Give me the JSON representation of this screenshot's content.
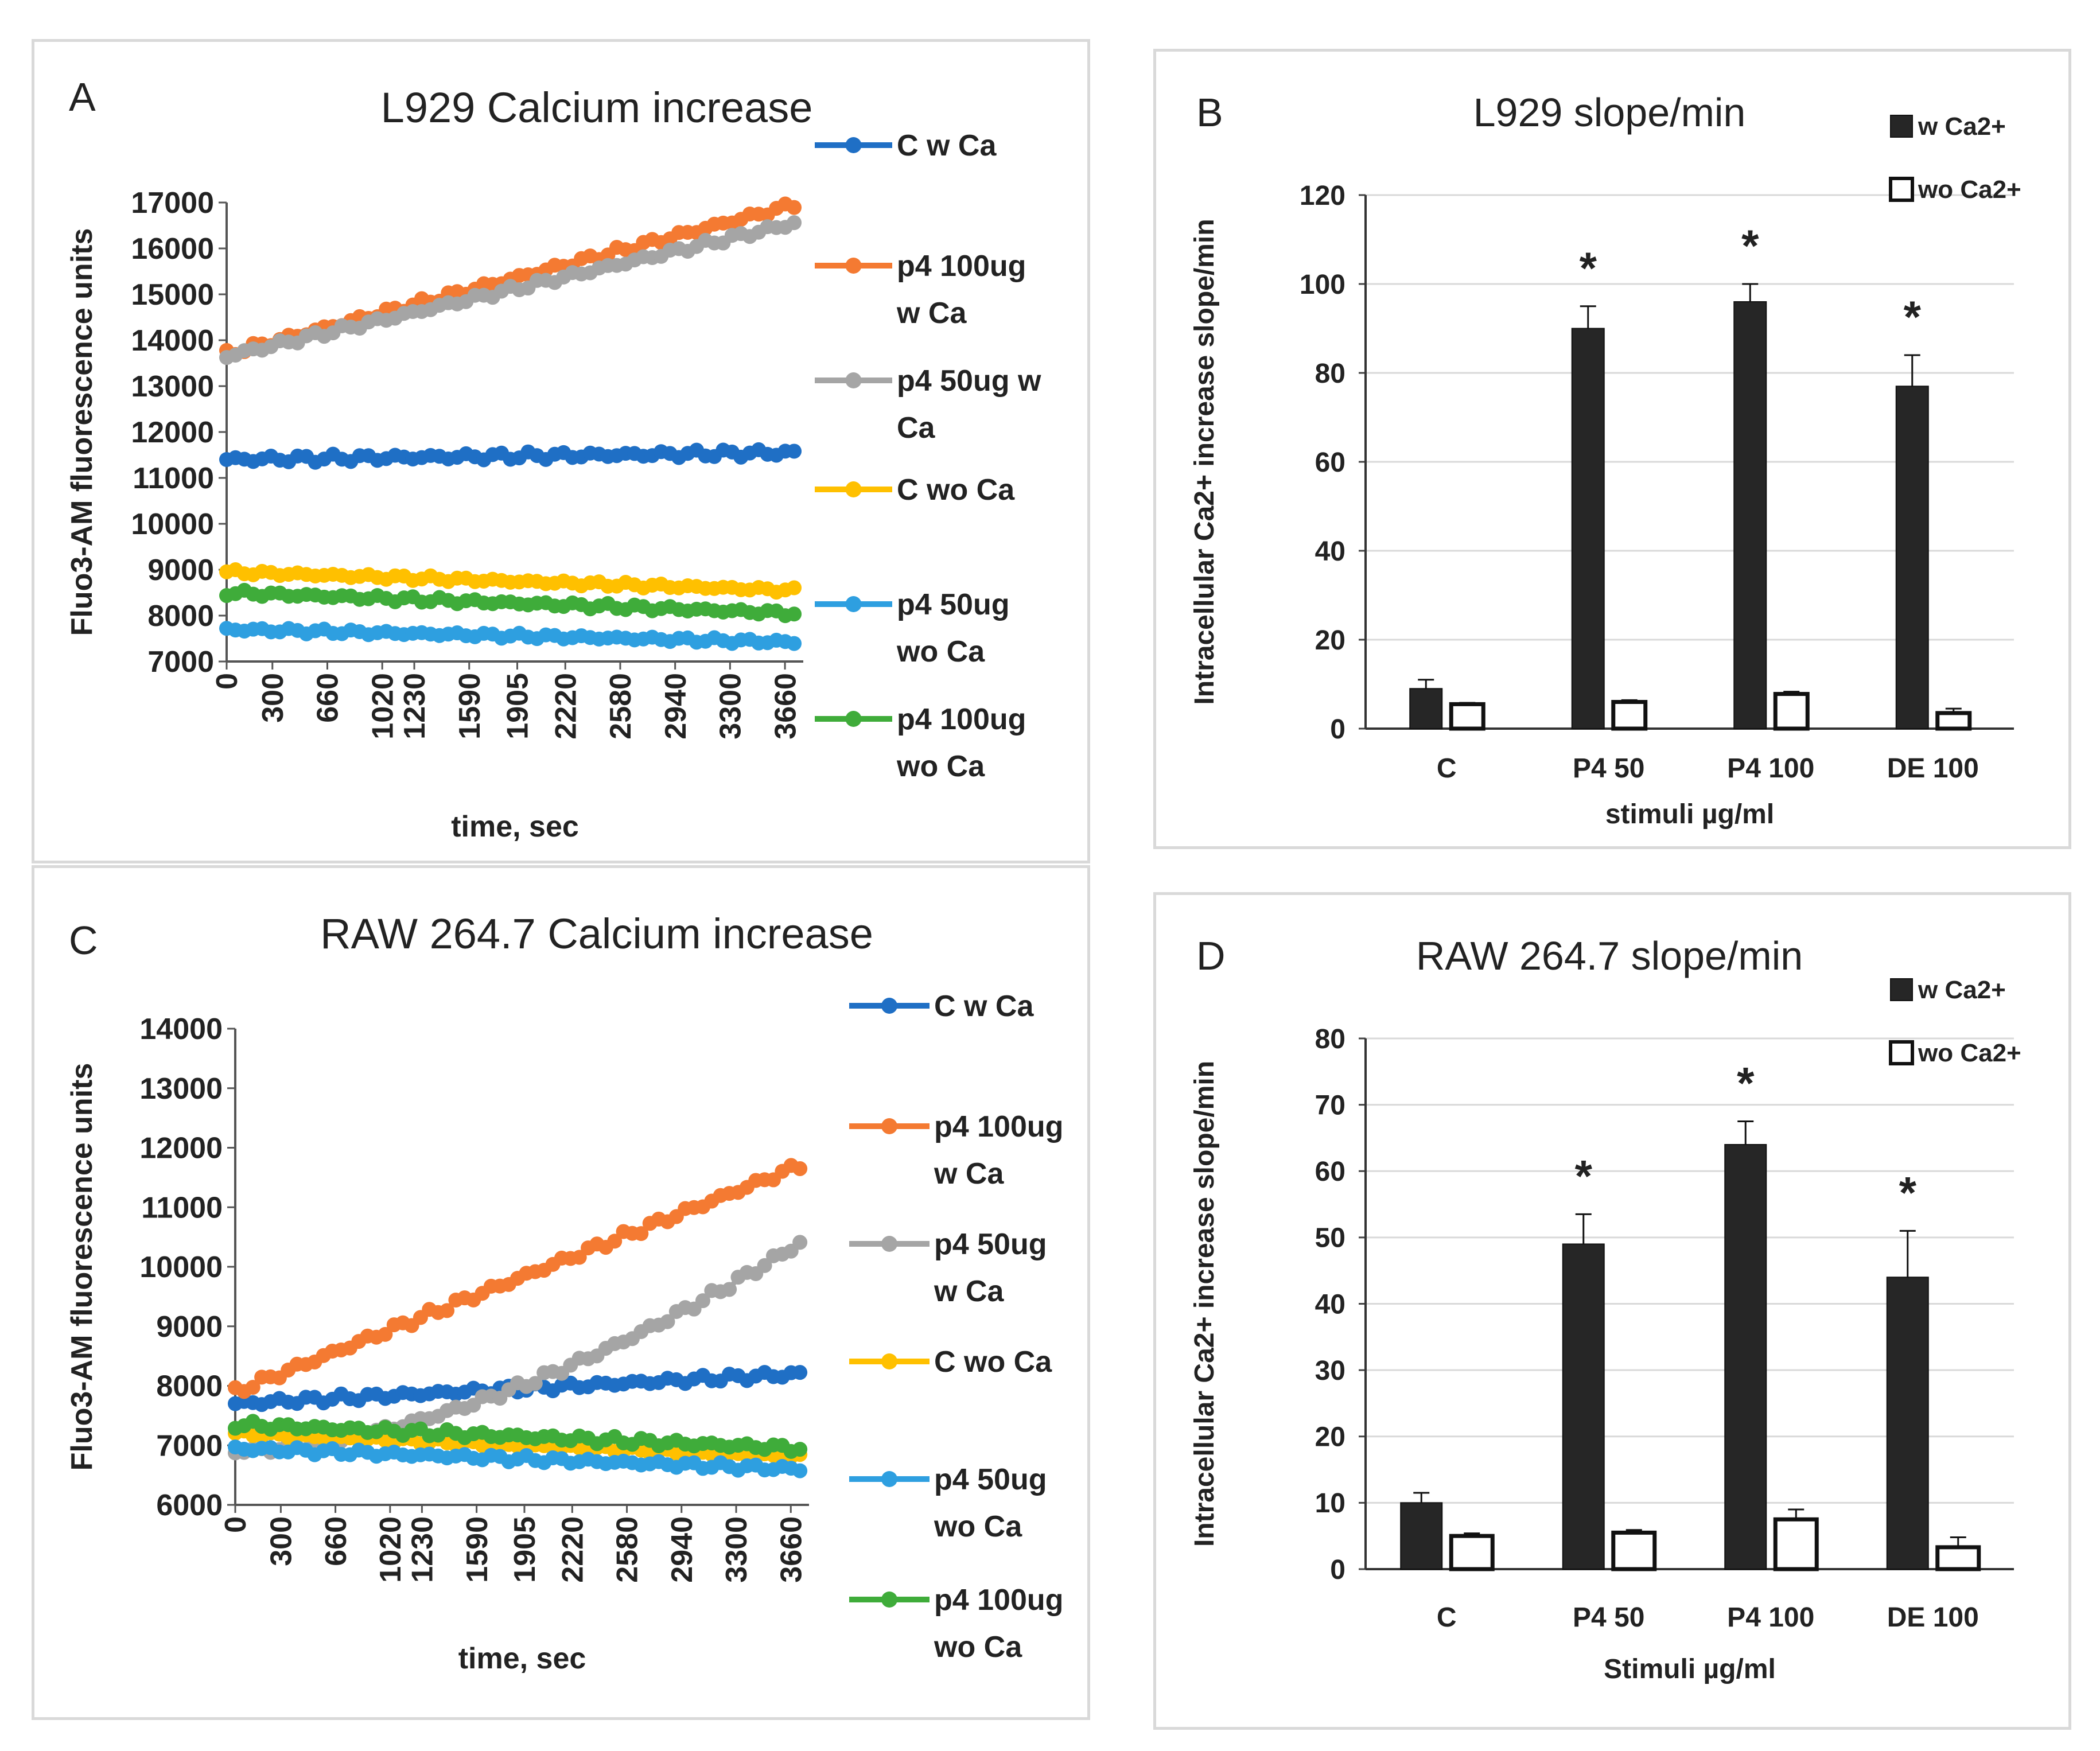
{
  "chart_data": [
    {
      "id": "A",
      "panel_letter": "A",
      "type": "line",
      "title": "L929 Calcium increase",
      "xlabel": "time, sec",
      "ylabel": "Fluo3-AM fluorescence units",
      "xlim": [
        0,
        3780
      ],
      "ylim": [
        7000,
        17000
      ],
      "yticks": [
        7000,
        8000,
        9000,
        10000,
        11000,
        12000,
        13000,
        14000,
        15000,
        16000,
        17000
      ],
      "ytick_labels": [
        "7000",
        "8000",
        "9000",
        "10000",
        "11000",
        "12000",
        "13000",
        "14000",
        "15000",
        "16000",
        "17000"
      ],
      "xticks": [
        0,
        300,
        660,
        1020,
        1230,
        1590,
        1905,
        2220,
        2580,
        2940,
        3300,
        3660
      ],
      "xtick_labels": [
        "0",
        "300",
        "660",
        "1020",
        "1230",
        "1590",
        "1905",
        "2220",
        "2580",
        "2940",
        "3300",
        "3660"
      ],
      "series": [
        {
          "name": "C w Ca",
          "legend_lines": [
            "C w Ca"
          ],
          "color": "#1f6fc5",
          "start": 11400,
          "end": 11550,
          "amp": 90
        },
        {
          "name": "p4 100ug w Ca",
          "legend_lines": [
            "p4 100ug",
            "w Ca"
          ],
          "color": "#f47a32",
          "start": 13700,
          "end": 16950,
          "amp": 90
        },
        {
          "name": "p4 50ug w Ca",
          "legend_lines": [
            "p4 50ug w",
            "Ca"
          ],
          "color": "#a5a5a5",
          "start": 13650,
          "end": 16550,
          "amp": 80
        },
        {
          "name": "C wo Ca",
          "legend_lines": [
            "C wo Ca"
          ],
          "color": "#ffc000",
          "start": 8950,
          "end": 8550,
          "amp": 60
        },
        {
          "name": "p4 50ug wo Ca",
          "legend_lines": [
            "p4 50ug",
            "wo Ca"
          ],
          "color": "#2e9fe0",
          "start": 7700,
          "end": 7420,
          "amp": 60
        },
        {
          "name": "p4 100ug wo Ca",
          "legend_lines": [
            "p4 100ug",
            "wo Ca"
          ],
          "color": "#3fac3a",
          "start": 8500,
          "end": 8050,
          "amp": 70
        }
      ]
    },
    {
      "id": "B",
      "panel_letter": "B",
      "type": "bar",
      "title": "L929 slope/min",
      "xlabel": "stimuli µg/ml",
      "ylabel": "Intracellular Ca2+ increase slope/min",
      "ylim": [
        0,
        120
      ],
      "yticks": [
        0,
        20,
        40,
        60,
        80,
        100,
        120
      ],
      "ytick_labels": [
        "0",
        "20",
        "40",
        "60",
        "80",
        "100",
        "120"
      ],
      "categories": [
        "C",
        "P4 50",
        "P4 100",
        "DE 100"
      ],
      "series": [
        {
          "name": "w Ca2+",
          "values": [
            9,
            90,
            96,
            77
          ],
          "errors": [
            2,
            5,
            4,
            7
          ]
        },
        {
          "name": "wo Ca2+",
          "values": [
            5.5,
            6,
            7.8,
            3.5
          ],
          "errors": [
            0.3,
            0.4,
            0.5,
            1.0
          ]
        }
      ],
      "significance": [
        "",
        "*",
        "*",
        "*"
      ]
    },
    {
      "id": "C",
      "panel_letter": "C",
      "type": "line",
      "title": "RAW 264.7 Calcium increase",
      "xlabel": "time, sec",
      "ylabel": "Fluo3-AM fluorescence units",
      "xlim": [
        0,
        3780
      ],
      "ylim": [
        6000,
        14000
      ],
      "yticks": [
        6000,
        7000,
        8000,
        9000,
        10000,
        11000,
        12000,
        13000,
        14000
      ],
      "ytick_labels": [
        "6000",
        "7000",
        "8000",
        "9000",
        "10000",
        "11000",
        "12000",
        "13000",
        "14000"
      ],
      "xticks": [
        0,
        300,
        660,
        1020,
        1230,
        1590,
        1905,
        2220,
        2580,
        2940,
        3300,
        3660
      ],
      "xtick_labels": [
        "0",
        "300",
        "660",
        "1020",
        "1230",
        "1590",
        "1905",
        "2220",
        "2580",
        "2940",
        "3300",
        "3660"
      ],
      "series": [
        {
          "name": "C w Ca",
          "legend_lines": [
            "C w Ca"
          ],
          "color": "#1f6fc5",
          "start": 7700,
          "end": 8200,
          "amp": 70
        },
        {
          "name": "p4 100ug w Ca",
          "legend_lines": [
            "p4 100ug",
            "w Ca"
          ],
          "color": "#f47a32",
          "start": 7900,
          "end": 11700,
          "amp": 80
        },
        {
          "name": "p4 50ug w Ca",
          "legend_lines": [
            "p4 50ug",
            "w Ca"
          ],
          "color": "#a5a5a5",
          "start": 6900,
          "end": 10400,
          "amp": 80,
          "curve": 1.7
        },
        {
          "name": "C wo Ca",
          "legend_lines": [
            "C wo Ca"
          ],
          "color": "#ffc000",
          "start": 7200,
          "end": 6800,
          "amp": 50
        },
        {
          "name": "p4 50ug wo Ca",
          "legend_lines": [
            "p4 50ug",
            "wo Ca"
          ],
          "color": "#2e9fe0",
          "start": 6950,
          "end": 6600,
          "amp": 60
        },
        {
          "name": "p4 100ug wo Ca",
          "legend_lines": [
            "p4 100ug",
            "wo Ca"
          ],
          "color": "#3fac3a",
          "start": 7350,
          "end": 6950,
          "amp": 70
        }
      ]
    },
    {
      "id": "D",
      "panel_letter": "D",
      "type": "bar",
      "title": "RAW 264.7 slope/min",
      "xlabel": "Stimuli µg/ml",
      "ylabel": "Intracellular Ca2+ increase slope/min",
      "ylim": [
        0,
        80
      ],
      "yticks": [
        0,
        10,
        20,
        30,
        40,
        50,
        60,
        70,
        80
      ],
      "ytick_labels": [
        "0",
        "10",
        "20",
        "30",
        "40",
        "50",
        "60",
        "70",
        "80"
      ],
      "categories": [
        "C",
        "P4 50",
        "P4 100",
        "DE 100"
      ],
      "series": [
        {
          "name": "w Ca2+",
          "values": [
            10,
            49,
            64,
            44
          ],
          "errors": [
            1.5,
            4.5,
            3.5,
            7
          ]
        },
        {
          "name": "wo Ca2+",
          "values": [
            5,
            5.5,
            7.5,
            3.3
          ],
          "errors": [
            0.4,
            0.4,
            1.5,
            1.5
          ]
        }
      ],
      "significance": [
        "",
        "*",
        "*",
        "*"
      ]
    }
  ]
}
